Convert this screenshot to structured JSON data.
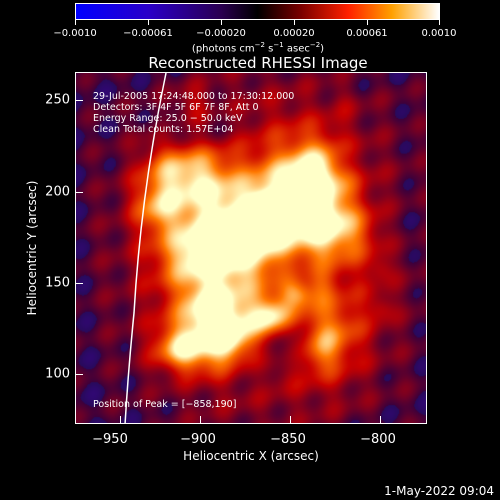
{
  "colorbar": {
    "ticks": [
      "−0.0010",
      "−0.00061",
      "−0.00020",
      "0.00020",
      "0.00061",
      "0.0010"
    ],
    "unit_prefix": "(photons cm",
    "unit_exp1": "−2",
    "unit_mid": " s",
    "unit_exp2": "−1",
    "unit_mid2": " asec",
    "unit_exp3": "−2",
    "unit_suffix": ")"
  },
  "image": {
    "title": "Reconstructed RHESSI Image",
    "info_time": "29-Jul-2005 17:24:48.000 to 17:30:12.000",
    "info_detectors": "Detectors: 3F 4F 5F 6F 7F 8F, Att 0",
    "info_energy": "Energy Range: 25.0 − 50.0 keV",
    "info_algorithm": "Clean     Total counts: 1.57E+04",
    "peak_label": "Position of Peak = [−858,190]",
    "x_axis_label": "Heliocentric X (arcsec)",
    "y_axis_label": "Heliocentric Y (arcsec)",
    "x_ticks": [
      "−950",
      "−900",
      "−850",
      "−800"
    ],
    "y_ticks": [
      "250",
      "200",
      "150",
      "100"
    ],
    "x_range": [
      -965,
      -770
    ],
    "y_range": [
      70,
      265
    ],
    "peak_position": [
      -858,
      190
    ]
  },
  "footer": {
    "date": "1-May-2022 09:04"
  },
  "colors": {
    "low": "#0000ff",
    "mid": "#000000",
    "warm": "#ff0000",
    "high": "#ffffff"
  }
}
